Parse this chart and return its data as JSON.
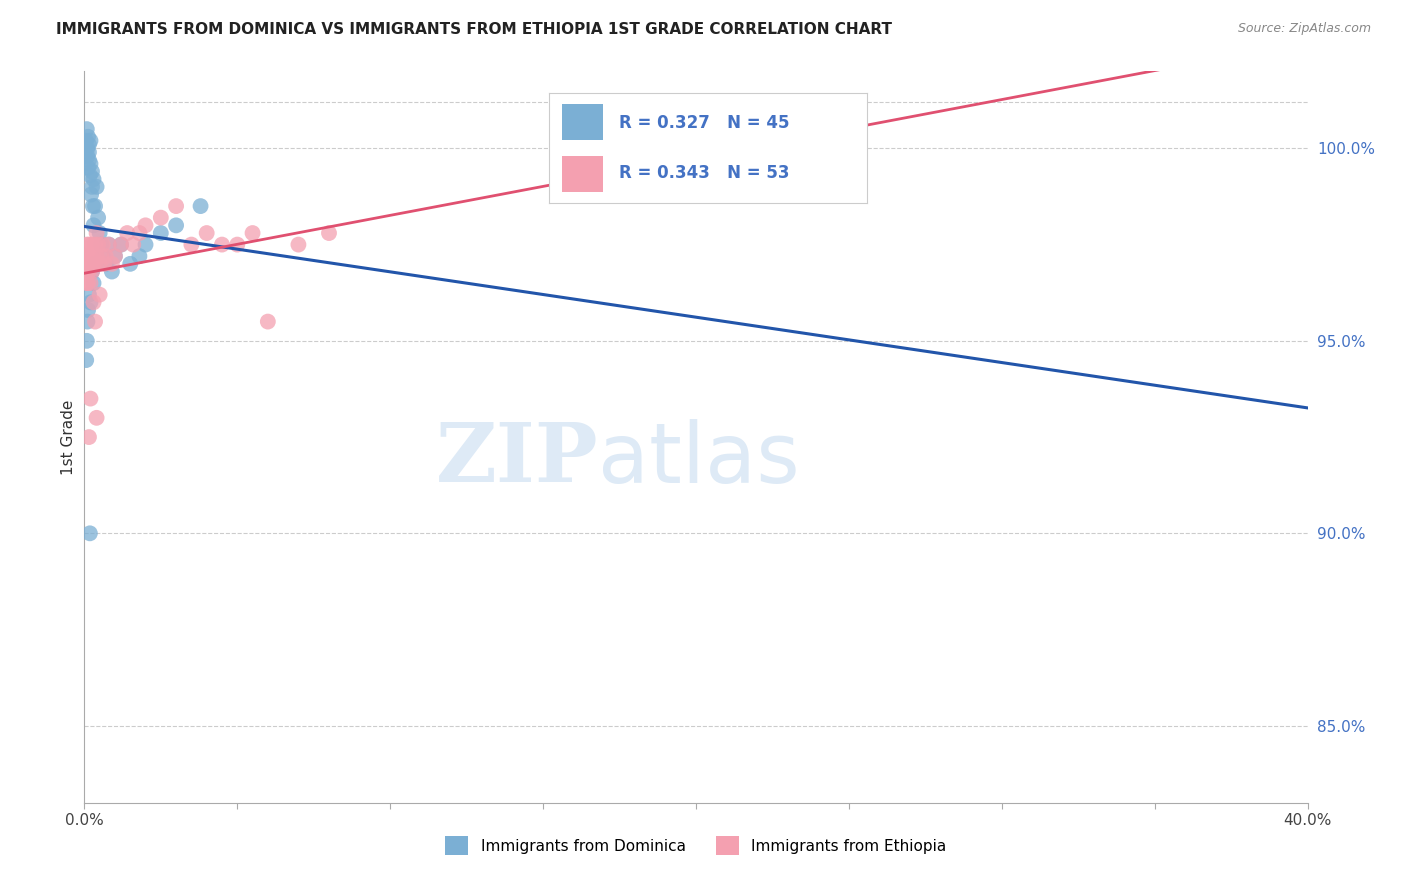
{
  "title": "IMMIGRANTS FROM DOMINICA VS IMMIGRANTS FROM ETHIOPIA 1ST GRADE CORRELATION CHART",
  "source": "Source: ZipAtlas.com",
  "ylabel": "1st Grade",
  "xlim": [
    0.0,
    40.0
  ],
  "ylim": [
    83.0,
    102.0
  ],
  "yticks": [
    85.0,
    90.0,
    95.0,
    100.0
  ],
  "ytick_labels": [
    "85.0%",
    "90.0%",
    "95.0%",
    "100.0%"
  ],
  "legend_r1": "R = 0.327",
  "legend_n1": "N = 45",
  "legend_r2": "R = 0.343",
  "legend_n2": "N = 53",
  "color_dominica": "#7BAFD4",
  "color_ethiopia": "#F4A0B0",
  "color_line_dominica": "#2255AA",
  "color_line_ethiopia": "#E05070",
  "label_dominica": "Immigrants from Dominica",
  "label_ethiopia": "Immigrants from Ethiopia",
  "dominica_x": [
    0.05,
    0.08,
    0.1,
    0.1,
    0.12,
    0.12,
    0.15,
    0.15,
    0.15,
    0.18,
    0.2,
    0.2,
    0.22,
    0.25,
    0.25,
    0.28,
    0.3,
    0.3,
    0.35,
    0.4,
    0.45,
    0.5,
    0.55,
    0.6,
    0.7,
    0.8,
    0.9,
    1.0,
    1.2,
    1.5,
    1.8,
    2.0,
    2.5,
    3.0,
    3.8,
    0.1,
    0.12,
    0.08,
    0.06,
    0.2,
    0.3,
    0.15,
    0.25,
    0.35,
    0.18
  ],
  "dominica_y": [
    100.2,
    100.5,
    99.8,
    100.0,
    99.5,
    100.3,
    99.7,
    100.1,
    99.9,
    99.3,
    99.6,
    100.2,
    98.8,
    99.4,
    99.0,
    98.5,
    99.2,
    98.0,
    98.5,
    99.0,
    98.2,
    97.8,
    97.5,
    97.2,
    97.0,
    97.5,
    96.8,
    97.2,
    97.5,
    97.0,
    97.2,
    97.5,
    97.8,
    98.0,
    98.5,
    95.5,
    95.8,
    95.0,
    94.5,
    96.0,
    96.5,
    96.2,
    96.8,
    97.0,
    90.0
  ],
  "ethiopia_x": [
    0.03,
    0.05,
    0.05,
    0.08,
    0.08,
    0.1,
    0.1,
    0.12,
    0.12,
    0.15,
    0.15,
    0.18,
    0.2,
    0.2,
    0.22,
    0.25,
    0.25,
    0.28,
    0.3,
    0.35,
    0.35,
    0.4,
    0.4,
    0.45,
    0.5,
    0.55,
    0.6,
    0.65,
    0.7,
    0.8,
    0.9,
    1.0,
    1.2,
    1.4,
    1.6,
    1.8,
    2.0,
    2.5,
    3.0,
    3.5,
    4.0,
    4.5,
    5.0,
    5.5,
    6.0,
    7.0,
    8.0,
    0.3,
    0.35,
    0.5,
    0.2,
    0.15,
    0.4
  ],
  "ethiopia_y": [
    97.2,
    97.0,
    96.8,
    97.5,
    96.5,
    97.0,
    96.8,
    97.2,
    96.5,
    97.5,
    96.8,
    97.0,
    97.2,
    96.5,
    97.0,
    97.5,
    96.8,
    97.0,
    97.2,
    97.5,
    97.0,
    97.8,
    97.2,
    97.5,
    97.0,
    97.2,
    97.5,
    97.0,
    97.2,
    97.5,
    97.0,
    97.2,
    97.5,
    97.8,
    97.5,
    97.8,
    98.0,
    98.2,
    98.5,
    97.5,
    97.8,
    97.5,
    97.5,
    97.8,
    95.5,
    97.5,
    97.8,
    96.0,
    95.5,
    96.2,
    93.5,
    92.5,
    93.0
  ]
}
